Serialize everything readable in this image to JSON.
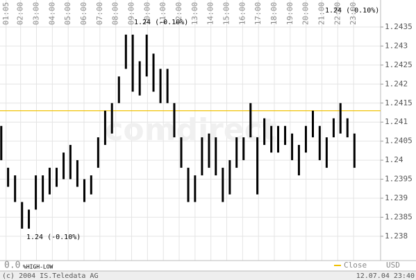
{
  "chart_data": {
    "type": "range",
    "watermark": "comdirect",
    "currency": "USD",
    "scale_start": "0.0",
    "scale_mode": "%HIGH-LOW",
    "copyright": "(c) 2004 IS.Teledata AG",
    "timestamp": "12.07.04 23:40",
    "annotations": [
      "1.24 (-0.10%)",
      "1.24 (-0.10%)",
      "1.24 (-0.10%)"
    ],
    "reference": {
      "name": "Close",
      "value": 1.2413,
      "color": "#f0c000"
    },
    "grid": true,
    "xlim": [
      0.7,
      24.7
    ],
    "xticks": [
      {
        "value": 1.0833,
        "label": "01:05"
      },
      {
        "value": 2,
        "label": "02:00"
      },
      {
        "value": 3,
        "label": "03:00"
      },
      {
        "value": 4,
        "label": "04:00"
      },
      {
        "value": 5,
        "label": "05:00"
      },
      {
        "value": 6,
        "label": "06:00"
      },
      {
        "value": 7,
        "label": "07:00"
      },
      {
        "value": 8,
        "label": "08:00"
      },
      {
        "value": 9,
        "label": "09:00"
      },
      {
        "value": 10,
        "label": "10:00"
      },
      {
        "value": 11,
        "label": "11:00"
      },
      {
        "value": 12,
        "label": "12:00"
      },
      {
        "value": 13,
        "label": "13:00"
      },
      {
        "value": 14,
        "label": "14:00"
      },
      {
        "value": 15,
        "label": "15:00"
      },
      {
        "value": 16,
        "label": "16:00"
      },
      {
        "value": 17,
        "label": "17:00"
      },
      {
        "value": 18,
        "label": "18:00"
      },
      {
        "value": 19,
        "label": "19:00"
      },
      {
        "value": 20,
        "label": "20:00"
      },
      {
        "value": 21,
        "label": "21:00"
      },
      {
        "value": 22,
        "label": "22:00"
      },
      {
        "value": 23,
        "label": "23:00"
      }
    ],
    "ylim": [
      1.23736,
      1.24421
    ],
    "yticks": [
      1.238,
      1.2385,
      1.239,
      1.2395,
      1.24,
      1.2405,
      1.241,
      1.2415,
      1.242,
      1.2425,
      1.243,
      1.2435
    ],
    "series": [
      {
        "color": "#000000",
        "x": [
          0.78,
          1.21,
          1.65,
          2.09,
          2.52,
          2.96,
          3.4,
          3.83,
          4.27,
          4.71,
          5.14,
          5.58,
          6.02,
          6.45,
          6.89,
          7.33,
          7.76,
          8.2,
          8.64,
          9.07,
          9.51,
          9.95,
          10.38,
          10.82,
          11.26,
          11.69,
          12.13,
          12.57,
          13.0,
          13.44,
          13.88,
          14.31,
          14.75,
          15.19,
          15.62,
          16.06,
          16.5,
          16.93,
          17.37,
          17.81,
          18.24,
          18.68,
          19.12,
          19.55,
          19.99,
          20.43,
          20.86,
          21.3,
          21.74,
          22.17,
          22.61,
          23.05
        ],
        "high": [
          1.2409,
          1.2398,
          1.2396,
          1.2389,
          1.2387,
          1.2396,
          1.2396,
          1.2398,
          1.2398,
          1.2402,
          1.2404,
          1.24,
          1.2395,
          1.2396,
          1.2406,
          1.2413,
          1.2415,
          1.2422,
          1.2433,
          1.2433,
          1.2426,
          1.2433,
          1.2428,
          1.2424,
          1.2424,
          1.2415,
          1.2406,
          1.2398,
          1.2396,
          1.2406,
          1.2407,
          1.2406,
          1.2398,
          1.24,
          1.2406,
          1.2406,
          1.2415,
          1.2406,
          1.2411,
          1.2409,
          1.2409,
          1.2409,
          1.2407,
          1.2404,
          1.2409,
          1.2413,
          1.2409,
          1.2406,
          1.2411,
          1.2415,
          1.2411,
          1.2407
        ],
        "low": [
          1.24,
          1.2393,
          1.2389,
          1.2382,
          1.2382,
          1.2387,
          1.2389,
          1.2391,
          1.2393,
          1.2395,
          1.2395,
          1.2393,
          1.2389,
          1.2391,
          1.2398,
          1.2404,
          1.2407,
          1.2415,
          1.2424,
          1.2418,
          1.2417,
          1.2422,
          1.2418,
          1.2415,
          1.2415,
          1.2406,
          1.2398,
          1.2389,
          1.2389,
          1.2396,
          1.2398,
          1.2396,
          1.2389,
          1.2391,
          1.2398,
          1.24,
          1.2406,
          1.2391,
          1.2404,
          1.2402,
          1.2402,
          1.2404,
          1.24,
          1.2396,
          1.2402,
          1.2406,
          1.24,
          1.2398,
          1.2406,
          1.2407,
          1.2406,
          1.2398
        ]
      }
    ]
  }
}
